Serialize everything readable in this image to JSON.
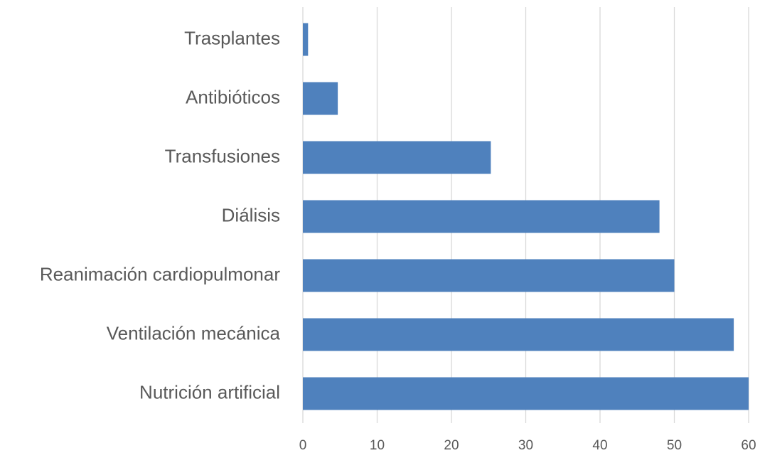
{
  "chart_data": {
    "type": "hbar",
    "categories": [
      "Trasplantes",
      "Antibióticos",
      "Transfusiones",
      "Diálisis",
      "Reanimación cardiopulmonar",
      "Ventilación mecánica",
      "Nutrición artificial"
    ],
    "values": [
      0.7,
      4.7,
      25.3,
      48,
      50,
      58,
      60
    ],
    "color": "#4f81bd",
    "xlim": [
      0,
      60
    ],
    "xticks": [
      0,
      10,
      20,
      30,
      40,
      50,
      60
    ],
    "grid": true
  }
}
